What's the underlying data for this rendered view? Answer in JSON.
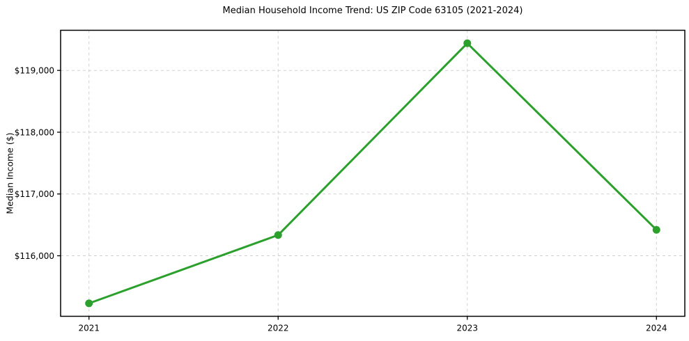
{
  "chart_data": {
    "type": "line",
    "title": "Median Household Income Trend: US ZIP Code 63105 (2021-2024)",
    "xlabel": "",
    "ylabel": "Median Income ($)",
    "x": [
      2021,
      2022,
      2023,
      2024
    ],
    "series": [
      {
        "name": "Median Household Income",
        "values": [
          115230,
          116335,
          119440,
          116420
        ],
        "color": "#2ca02c"
      }
    ],
    "xticks": [
      2021,
      2022,
      2023,
      2024
    ],
    "xtick_labels": [
      "2021",
      "2022",
      "2023",
      "2024"
    ],
    "yticks": [
      116000,
      117000,
      118000,
      119000
    ],
    "ytick_labels": [
      "$116,000",
      "$117,000",
      "$118,000",
      "$119,000"
    ],
    "xlim": [
      2020.85,
      2024.15
    ],
    "ylim": [
      115020,
      119650
    ],
    "grid": true,
    "grid_style": "dashed",
    "grid_color": "#d0d0d0",
    "axis_color": "#000000",
    "text_color": "#000000",
    "legend": "none",
    "marker": "circle"
  }
}
